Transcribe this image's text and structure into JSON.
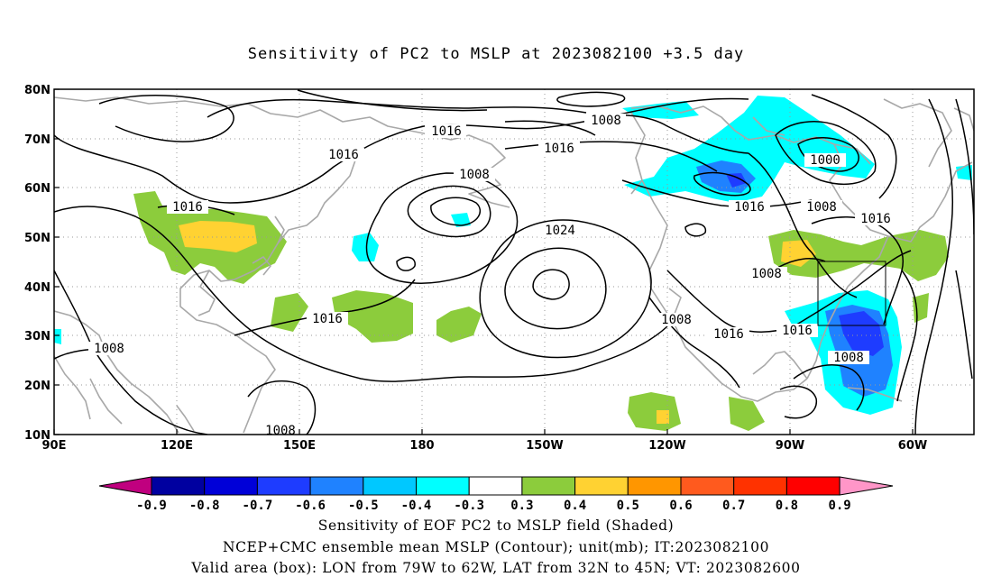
{
  "title": "Sensitivity of PC2 to MSLP at 2023082100 +3.5 day",
  "lat_ticks": [
    "80N",
    "70N",
    "60N",
    "50N",
    "40N",
    "30N",
    "20N",
    "10N"
  ],
  "lon_ticks": [
    "90E",
    "120E",
    "150E",
    "180",
    "150W",
    "120W",
    "90W",
    "60W"
  ],
  "contour_labels": [
    "1008",
    "1016",
    "1016",
    "1016",
    "1008",
    "1016",
    "1024",
    "1000",
    "1016",
    "1008",
    "1016",
    "1008",
    "1016",
    "1008",
    "1016",
    "1016",
    "1008",
    "1008",
    "1008"
  ],
  "colorbar": {
    "labels": [
      "-0.9",
      "-0.8",
      "-0.7",
      "-0.6",
      "-0.5",
      "-0.4",
      "-0.3",
      "0.3",
      "0.4",
      "0.5",
      "0.6",
      "0.7",
      "0.8",
      "0.9"
    ],
    "colors": [
      "#c0007f",
      "#0000a0",
      "#0000d8",
      "#1e3cff",
      "#1f82ff",
      "#00c8ff",
      "#00ffff",
      "#ffffff",
      "#8ccc3c",
      "#ffd232",
      "#ff9600",
      "#ff5a1e",
      "#ff3200",
      "#ff0000",
      "#ff96c8"
    ]
  },
  "valid_box": {
    "lon_west": "79W",
    "lon_east": "62W",
    "lat_south": "32N",
    "lat_north": "45N"
  },
  "captions": [
    "Sensitivity of EOF PC2 to MSLP field (Shaded)",
    "NCEP+CMC ensemble mean MSLP (Contour); unit(mb); IT:2023082100",
    "Valid area (box): LON from 79W to 62W, LAT from 32N to 45N; VT: 2023082600"
  ]
}
